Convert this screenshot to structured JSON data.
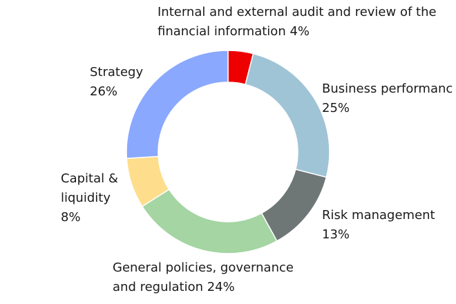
{
  "chart_data": {
    "type": "pie",
    "categories": [
      "Internal and external audit and review of the financial information",
      "Business performance",
      "Risk management",
      "General policies, governance and regulation",
      "Capital & liquidity",
      "Strategy"
    ],
    "values": [
      4,
      25,
      13,
      24,
      8,
      26
    ],
    "unit": "%",
    "colors": [
      "#ee0000",
      "#9fc4d6",
      "#6e7676",
      "#a4d5a3",
      "#fede8c",
      "#8aa8fe"
    ],
    "labels": [
      {
        "lines": [
          "Internal and external audit and review of the",
          "financial information 4%"
        ]
      },
      {
        "lines": [
          "Business performanc",
          "25%"
        ]
      },
      {
        "lines": [
          "Risk management",
          "13%"
        ]
      },
      {
        "lines": [
          "General policies, governance",
          "and regulation 24%"
        ]
      },
      {
        "lines": [
          "Capital &",
          "liquidity",
          "8%"
        ]
      },
      {
        "lines": [
          "Strategy",
          "26%"
        ]
      }
    ]
  }
}
